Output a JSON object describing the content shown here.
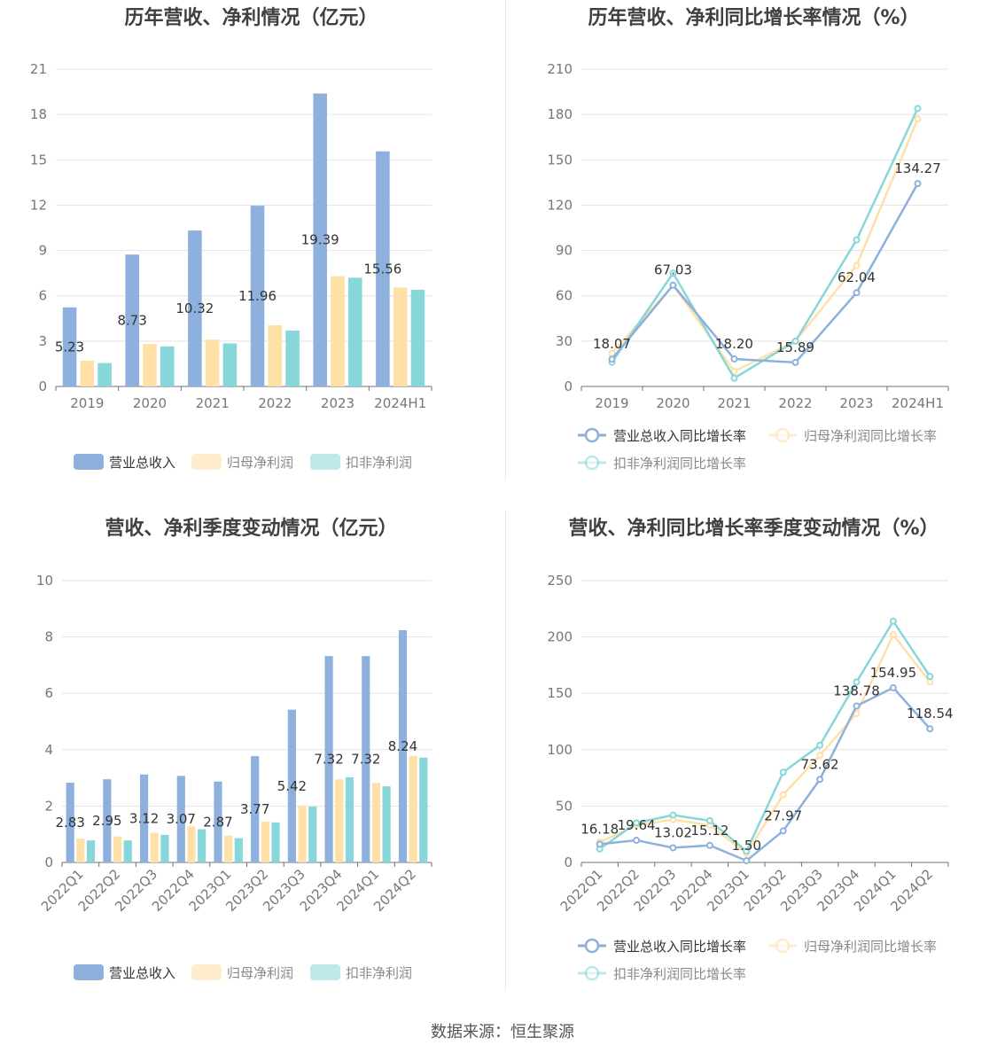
{
  "footer": {
    "source": "数据来源：恒生聚源"
  },
  "colors": {
    "revenue": "#8eb0dc",
    "parent_profit": "#ffe0a6",
    "non_recurring_profit": "#87d7da"
  },
  "chart_data": [
    {
      "id": "annual_amount",
      "type": "bar",
      "title": "历年营收、净利情况（亿元）",
      "categories": [
        "2019",
        "2020",
        "2021",
        "2022",
        "2023",
        "2024H1"
      ],
      "ylim": [
        0,
        21
      ],
      "yticks": [
        0,
        3,
        6,
        9,
        12,
        15,
        18,
        21
      ],
      "series": [
        {
          "name": "营业总收入",
          "color": "#8eb0dc",
          "values": [
            5.23,
            8.73,
            10.32,
            11.96,
            19.39,
            15.56
          ],
          "labels": [
            "5.23",
            "8.73",
            "10.32",
            "11.96",
            "19.39",
            "15.56"
          ]
        },
        {
          "name": "归母净利润",
          "color": "#ffe0a6",
          "values": [
            1.7,
            2.8,
            3.1,
            4.05,
            7.3,
            6.55
          ]
        },
        {
          "name": "扣非净利润",
          "color": "#87d7da",
          "values": [
            1.55,
            2.65,
            2.85,
            3.7,
            7.2,
            6.4
          ]
        }
      ],
      "legend": "bottom",
      "grid": true
    },
    {
      "id": "annual_growth",
      "type": "line",
      "title": "历年营收、净利同比增长率情况（%）",
      "categories": [
        "2019",
        "2020",
        "2021",
        "2022",
        "2023",
        "2024H1"
      ],
      "ylim": [
        0,
        210
      ],
      "yticks": [
        0,
        30,
        60,
        90,
        120,
        150,
        180,
        210
      ],
      "series": [
        {
          "name": "营业总收入同比增长率",
          "color": "#8eb0dc",
          "values": [
            18.07,
            67.03,
            18.2,
            15.89,
            62.04,
            134.27
          ],
          "labels": [
            "18.07",
            "67.03",
            "18.20",
            "15.89",
            "62.04",
            "134.27"
          ]
        },
        {
          "name": "归母净利润同比增长率",
          "color": "#ffe0a6",
          "values": [
            22,
            67,
            10,
            30,
            80,
            177
          ]
        },
        {
          "name": "扣非净利润同比增长率",
          "color": "#87d7da",
          "values": [
            16,
            75,
            5.5,
            30,
            97,
            184
          ]
        }
      ],
      "legend": "bottom",
      "grid": true
    },
    {
      "id": "quarterly_amount",
      "type": "bar",
      "title": "营收、净利季度变动情况（亿元）",
      "categories": [
        "2022Q1",
        "2022Q2",
        "2022Q3",
        "2022Q4",
        "2023Q1",
        "2023Q2",
        "2023Q3",
        "2023Q4",
        "2024Q1",
        "2024Q2"
      ],
      "ylim": [
        0,
        10
      ],
      "yticks": [
        0,
        2,
        4,
        6,
        8,
        10
      ],
      "series": [
        {
          "name": "营业总收入",
          "color": "#8eb0dc",
          "values": [
            2.83,
            2.95,
            3.12,
            3.07,
            2.87,
            3.77,
            5.42,
            7.32,
            7.32,
            8.24
          ],
          "labels": [
            "2.83",
            "2.95",
            "3.12",
            "3.07",
            "2.87",
            "3.77",
            "5.42",
            "7.32",
            "7.32",
            "8.24"
          ]
        },
        {
          "name": "归母净利润",
          "color": "#ffe0a6",
          "values": [
            0.85,
            0.92,
            1.05,
            1.28,
            0.95,
            1.45,
            2.02,
            2.95,
            2.82,
            3.78
          ]
        },
        {
          "name": "扣非净利润",
          "color": "#87d7da",
          "values": [
            0.78,
            0.78,
            0.98,
            1.18,
            0.86,
            1.42,
            1.98,
            3.02,
            2.7,
            3.72
          ]
        }
      ],
      "legend": "bottom",
      "grid": true
    },
    {
      "id": "quarterly_growth",
      "type": "line",
      "title": "营收、净利同比增长率季度变动情况（%）",
      "categories": [
        "2022Q1",
        "2022Q2",
        "2022Q3",
        "2022Q4",
        "2023Q1",
        "2023Q2",
        "2023Q3",
        "2023Q4",
        "2024Q1",
        "2024Q2"
      ],
      "ylim": [
        0,
        250
      ],
      "yticks": [
        0,
        50,
        100,
        150,
        200,
        250
      ],
      "series": [
        {
          "name": "营业总收入同比增长率",
          "color": "#8eb0dc",
          "values": [
            16.18,
            19.64,
            13.02,
            15.12,
            1.5,
            27.97,
            73.62,
            138.78,
            154.95,
            118.54
          ],
          "labels": [
            "16.18",
            "19.64",
            "13.02",
            "15.12",
            "1.50",
            "27.97",
            "73.62",
            "138.78",
            "154.95",
            "118.54"
          ]
        },
        {
          "name": "归母净利润同比增长率",
          "color": "#ffe0a6",
          "values": [
            18,
            33,
            38,
            33,
            8,
            60,
            95,
            132,
            202,
            160
          ]
        },
        {
          "name": "扣非净利润同比增长率",
          "color": "#87d7da",
          "values": [
            12,
            35,
            42,
            37,
            10,
            80,
            104,
            160,
            214,
            165
          ]
        }
      ],
      "legend": "bottom",
      "grid": true
    }
  ]
}
